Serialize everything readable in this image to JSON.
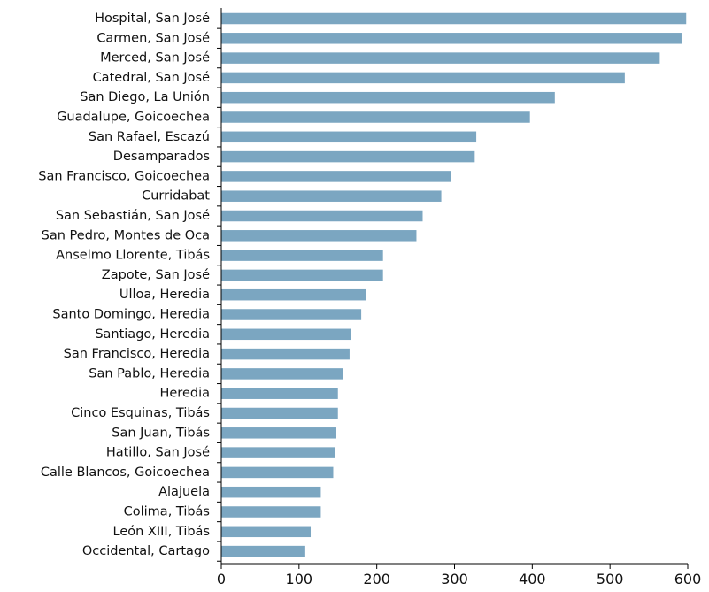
{
  "chart_data": {
    "type": "bar",
    "orientation": "horizontal",
    "title": "",
    "xlabel": "",
    "ylabel": "",
    "categories": [
      "Hospital, San José",
      "Carmen, San José",
      "Merced, San José",
      "Catedral, San José",
      "San Diego, La Unión",
      "Guadalupe, Goicoechea",
      "San Rafael, Escazú",
      "Desamparados",
      "San Francisco, Goicoechea",
      "Curridabat",
      "San Sebastián, San José",
      "San Pedro, Montes de Oca",
      "Anselmo Llorente, Tibás",
      "Zapote, San José",
      "Ulloa, Heredia",
      "Santo Domingo, Heredia",
      "Santiago, Heredia",
      "San Francisco, Heredia",
      "San Pablo, Heredia",
      "Heredia",
      "Cinco Esquinas, Tibás",
      "San Juan, Tibás",
      "Hatillo, San José",
      "Calle Blancos, Goicoechea",
      "Alajuela",
      "Colima, Tibás",
      "León XIII, Tibás",
      "Occidental, Cartago"
    ],
    "values": [
      598,
      592,
      564,
      519,
      429,
      397,
      328,
      326,
      296,
      283,
      259,
      251,
      208,
      208,
      186,
      180,
      167,
      165,
      156,
      150,
      150,
      148,
      146,
      144,
      128,
      128,
      115,
      108
    ],
    "xlim": [
      0,
      600
    ],
    "xticks": [
      0,
      100,
      200,
      300,
      400,
      500,
      600
    ],
    "grid": false,
    "legend": "none",
    "bar_color": "#7ba6c1"
  }
}
